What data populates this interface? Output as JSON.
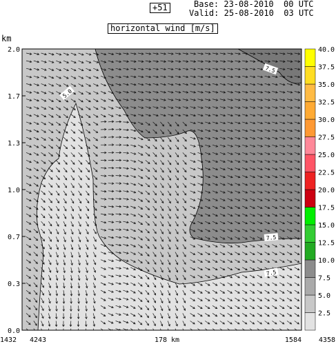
{
  "header": {
    "forecast_step": "+51",
    "base_label": "Base:",
    "base_value": "23-08-2010  00 UTC",
    "valid_label": "Valid:",
    "valid_value": "25-08-2010  03 UTC",
    "plot_title": "horizontal wind [m/s]"
  },
  "chart_data": {
    "type": "heatmap",
    "title": "horizontal wind [m/s]",
    "ylabel": "km",
    "ylim": [
      0,
      2.0
    ],
    "y_ticks": [
      "0.0",
      "0.3",
      "0.7",
      "1.0",
      "1.3",
      "1.7",
      "2.0"
    ],
    "x_tick_labels": {
      "left_outer": "1432",
      "left_inner": "4243",
      "center": "178 km",
      "right_inner": "1584",
      "right_outer": "4358"
    },
    "colorbar": {
      "values": [
        "2.5",
        "5.0",
        "7.5",
        "10.0",
        "12.5",
        "15.0",
        "17.5",
        "20.0",
        "22.5",
        "25.0",
        "27.5",
        "30.0",
        "32.5",
        "35.0",
        "37.5",
        "40.0"
      ],
      "colors": [
        "#e2e2e2",
        "#c8c8c8",
        "#aaaaaa",
        "#8c8c8c",
        "#22aa22",
        "#33cc33",
        "#00ee00",
        "#cc0011",
        "#ee2222",
        "#ff5566",
        "#ff8899",
        "#ff9933",
        "#ffaa33",
        "#ffbb44",
        "#ffdd22",
        "#ffff00"
      ]
    },
    "contour_labels": [
      "5.0",
      "7.5",
      "7.5",
      "7.5"
    ],
    "grid": false,
    "legend_position": "right"
  }
}
